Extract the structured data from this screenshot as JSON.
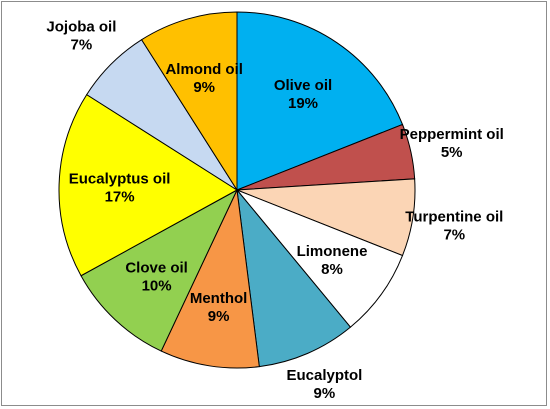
{
  "chart_data": {
    "type": "pie",
    "title": "",
    "categories": [
      "Olive oil",
      "Peppermint oil",
      "Turpentine oil",
      "Limonene",
      "Eucalyptol",
      "Menthol",
      "Clove oil",
      "Eucalyptus oil",
      "Jojoba oil",
      "Almond oil"
    ],
    "values": [
      19,
      5,
      7,
      8,
      9,
      9,
      10,
      17,
      7,
      9
    ],
    "value_labels": [
      "19%",
      "5%",
      "7%",
      "8%",
      "9%",
      "9%",
      "10%",
      "17%",
      "7%",
      "9%"
    ],
    "colors": [
      "#00B0F0",
      "#C0504D",
      "#FBD5B5",
      "#FFFFFF",
      "#4BACC6",
      "#F79646",
      "#92D050",
      "#FFFF00",
      "#C6D9F1",
      "#FFC000"
    ],
    "start_angle_deg": 0,
    "direction": "clockwise",
    "legend": "none",
    "labels_inside": [
      true,
      false,
      false,
      true,
      false,
      true,
      true,
      true,
      false,
      true
    ]
  }
}
